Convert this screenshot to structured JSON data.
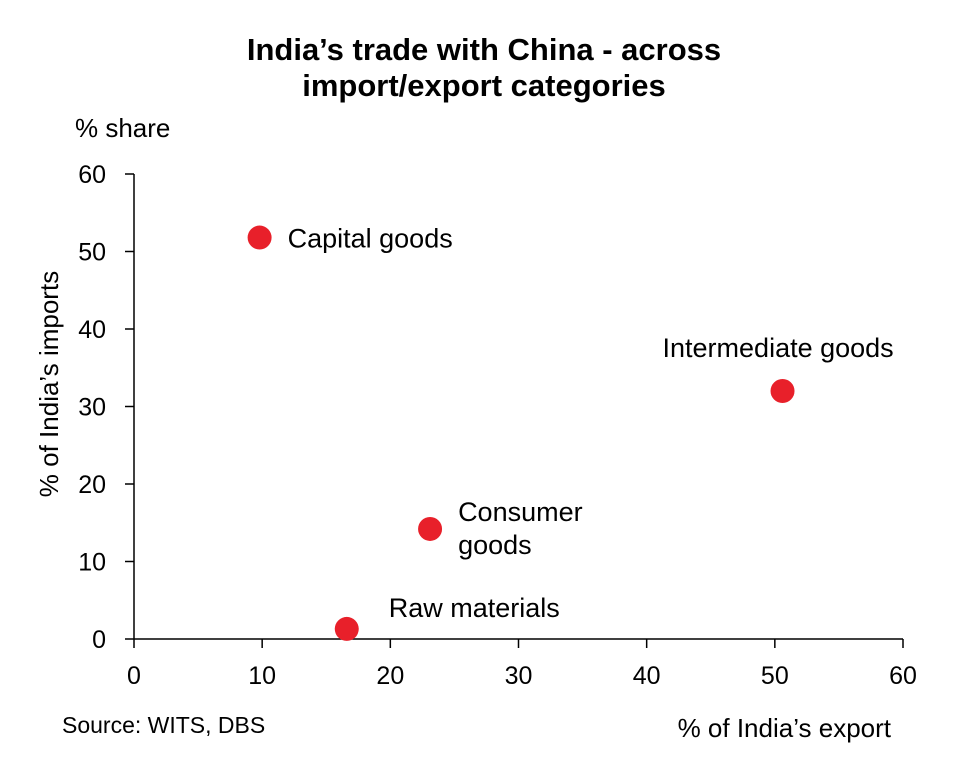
{
  "chart_data": {
    "type": "scatter",
    "title_lines": [
      "India’s trade with China - across",
      "import/export categories"
    ],
    "unit_label": "% share",
    "xlabel": "% of India’s export",
    "ylabel": "% of India’s imports",
    "xlim": [
      0,
      60
    ],
    "ylim": [
      0,
      60
    ],
    "xticks": [
      0,
      10,
      20,
      30,
      40,
      50,
      60
    ],
    "yticks": [
      0,
      10,
      20,
      30,
      40,
      50,
      60
    ],
    "grid": false,
    "marker_color": "#e8202a",
    "points": [
      {
        "label": [
          "Capital goods"
        ],
        "x": 9.8,
        "y": 51.8
      },
      {
        "label": [
          "Intermediate goods"
        ],
        "x": 50.6,
        "y": 32.0
      },
      {
        "label": [
          "Consumer",
          "goods"
        ],
        "x": 23.1,
        "y": 14.2
      },
      {
        "label": [
          "Raw materials"
        ],
        "x": 16.6,
        "y": 1.3
      }
    ],
    "source": "Source: WITS, DBS"
  }
}
